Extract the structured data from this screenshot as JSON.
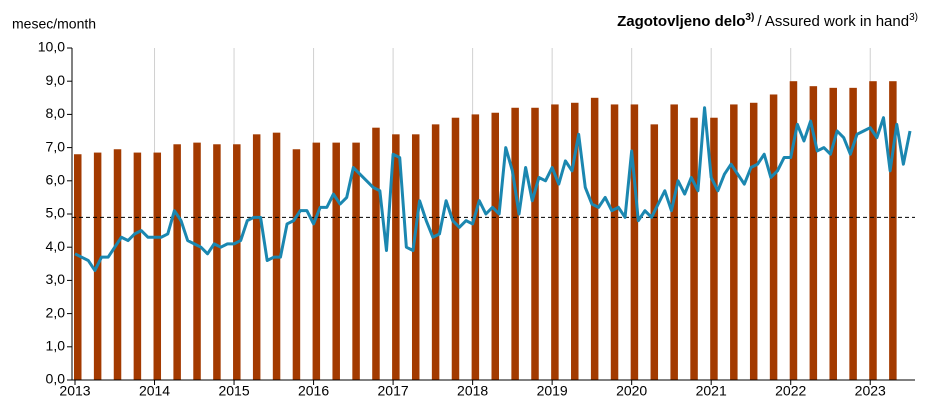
{
  "chart_data": {
    "type": "bar_line",
    "title": "Zagotovljeno delo",
    "subtitle": "/ Assured work in hand",
    "footnote_mark": "3)",
    "y_axis_label": "mesec/month",
    "categories": [
      "2013",
      null,
      null,
      null,
      null,
      null,
      null,
      null,
      null,
      null,
      null,
      null,
      "2014",
      null,
      null,
      null,
      null,
      null,
      null,
      null,
      null,
      null,
      null,
      null,
      "2015",
      null,
      null,
      null,
      null,
      null,
      null,
      null,
      null,
      null,
      null,
      null,
      "2016",
      null,
      null,
      null,
      null,
      null,
      null,
      null,
      null,
      null,
      null,
      null,
      "2017",
      null,
      null,
      null,
      null,
      null,
      null,
      null,
      null,
      null,
      null,
      null,
      "2018",
      null,
      null,
      null,
      null,
      null,
      null,
      null,
      null,
      null,
      null,
      null,
      "2019",
      null,
      null,
      null,
      null,
      null,
      null,
      null,
      null,
      null,
      null,
      null,
      "2020",
      null,
      null,
      null,
      null,
      null,
      null,
      null,
      null,
      null,
      null,
      null,
      "2021",
      null,
      null,
      null,
      null,
      null,
      null,
      null,
      null,
      null,
      null,
      null,
      "2022",
      null,
      null,
      null,
      null,
      null,
      null,
      null,
      null,
      null,
      null,
      null,
      "2023",
      null,
      null,
      null,
      null,
      null,
      null
    ],
    "series": [
      {
        "type": "bar",
        "color": "#a33a00",
        "values": [
          6.8,
          null,
          null,
          6.85,
          null,
          null,
          6.95,
          null,
          null,
          6.85,
          null,
          null,
          6.85,
          null,
          null,
          7.1,
          null,
          null,
          7.15,
          null,
          null,
          7.1,
          null,
          null,
          7.1,
          null,
          null,
          7.4,
          null,
          null,
          7.45,
          null,
          null,
          6.95,
          null,
          null,
          7.15,
          null,
          null,
          7.15,
          null,
          null,
          7.15,
          null,
          null,
          7.6,
          null,
          null,
          7.4,
          null,
          null,
          7.4,
          null,
          null,
          7.7,
          null,
          null,
          7.9,
          null,
          null,
          8.0,
          null,
          null,
          8.05,
          null,
          null,
          8.2,
          null,
          null,
          8.2,
          null,
          null,
          8.3,
          null,
          null,
          8.35,
          null,
          null,
          8.5,
          null,
          null,
          8.3,
          null,
          null,
          8.3,
          null,
          null,
          7.7,
          null,
          null,
          8.3,
          null,
          null,
          7.9,
          null,
          null,
          7.9,
          null,
          null,
          8.3,
          null,
          null,
          8.35,
          null,
          null,
          8.6,
          null,
          null,
          9.0,
          null,
          null,
          8.85,
          null,
          null,
          8.8,
          null,
          null,
          8.8,
          null,
          null,
          9.0,
          null,
          null,
          9.0,
          null,
          null,
          null
        ]
      },
      {
        "type": "line",
        "color": "#1b87b0",
        "values": [
          3.8,
          3.7,
          3.6,
          3.3,
          3.7,
          3.7,
          4.0,
          4.3,
          4.2,
          4.4,
          4.5,
          4.3,
          4.3,
          4.3,
          4.4,
          5.1,
          4.8,
          4.2,
          4.1,
          4.0,
          3.8,
          4.1,
          4.0,
          4.1,
          4.1,
          4.2,
          4.8,
          4.9,
          4.9,
          3.6,
          3.7,
          3.7,
          4.7,
          4.8,
          5.1,
          5.1,
          4.7,
          5.2,
          5.2,
          5.6,
          5.3,
          5.5,
          6.4,
          6.2,
          6.0,
          5.8,
          5.7,
          3.9,
          6.8,
          6.7,
          4.0,
          3.9,
          5.4,
          4.8,
          4.3,
          4.4,
          5.4,
          4.8,
          4.6,
          4.8,
          4.7,
          5.4,
          5.0,
          5.2,
          5.0,
          7.0,
          6.3,
          5.0,
          6.4,
          5.4,
          6.1,
          6.0,
          6.4,
          5.9,
          6.6,
          6.3,
          7.4,
          5.8,
          5.3,
          5.2,
          5.5,
          5.1,
          5.2,
          4.9,
          6.9,
          4.8,
          5.1,
          4.9,
          5.3,
          5.7,
          5.1,
          6.0,
          5.6,
          6.1,
          5.7,
          8.2,
          6.1,
          5.7,
          6.2,
          6.5,
          6.2,
          5.9,
          6.4,
          6.5,
          6.8,
          6.1,
          6.3,
          6.7,
          6.7,
          7.7,
          7.2,
          7.8,
          6.9,
          7.0,
          6.8,
          7.5,
          7.3,
          6.8,
          7.4,
          7.5,
          7.6,
          7.3,
          7.9,
          6.3,
          7.7,
          6.5,
          7.5
        ]
      }
    ],
    "reference_line": 4.9,
    "ylim": [
      0,
      10
    ],
    "yticks": [
      {
        "value": 0,
        "label": "0,0"
      },
      {
        "value": 1,
        "label": "1,0"
      },
      {
        "value": 2,
        "label": "2,0"
      },
      {
        "value": 3,
        "label": "3,0"
      },
      {
        "value": 4,
        "label": "4,0"
      },
      {
        "value": 5,
        "label": "5,0"
      },
      {
        "value": 6,
        "label": "6,0"
      },
      {
        "value": 7,
        "label": "7,0"
      },
      {
        "value": 8,
        "label": "8,0"
      },
      {
        "value": 9,
        "label": "9,0"
      },
      {
        "value": 10,
        "label": "10,0"
      }
    ],
    "grid": "x"
  }
}
